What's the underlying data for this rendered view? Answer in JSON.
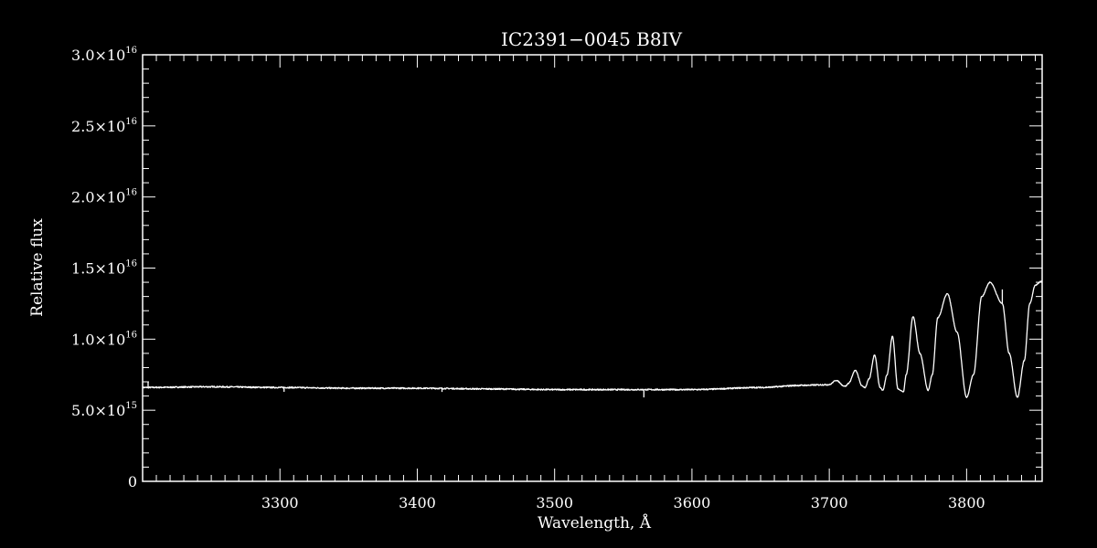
{
  "chart_data": {
    "type": "line",
    "title": "IC2391−0045   B8IV",
    "xlabel": "Wavelength, Å",
    "ylabel": "Relative flux",
    "xlim": [
      3200,
      3855
    ],
    "ylim": [
      0,
      3e+16
    ],
    "x_ticks": [
      3300,
      3400,
      3500,
      3600,
      3700,
      3800
    ],
    "x_tick_labels": [
      "3300",
      "3400",
      "3500",
      "3600",
      "3700",
      "3800"
    ],
    "y_ticks": [
      0,
      5000000000000000.0,
      1e+16,
      1.5e+16,
      2e+16,
      2.5e+16,
      3e+16
    ],
    "y_tick_labels": [
      {
        "mantissa": "0",
        "exp": ""
      },
      {
        "mantissa": "5.0×10",
        "exp": "15"
      },
      {
        "mantissa": "1.0×10",
        "exp": "16"
      },
      {
        "mantissa": "1.5×10",
        "exp": "16"
      },
      {
        "mantissa": "2.0×10",
        "exp": "16"
      },
      {
        "mantissa": "2.5×10",
        "exp": "16"
      },
      {
        "mantissa": "3.0×10",
        "exp": "16"
      }
    ],
    "grid": false,
    "colors": {
      "background": "#000000",
      "foreground": "#ffffff",
      "line": "#ffffff"
    },
    "series": [
      {
        "x": [
          3200,
          3250,
          3300,
          3350,
          3400,
          3450,
          3500,
          3550,
          3600,
          3650,
          3680,
          3700,
          3705,
          3711,
          3712,
          3714,
          3719,
          3724,
          3726,
          3729,
          3733,
          3737,
          3739,
          3742,
          3746,
          3750,
          3754,
          3756,
          3761,
          3766,
          3772,
          3775,
          3779,
          3786,
          3793,
          3800,
          3805,
          3811,
          3817,
          3826,
          3831,
          3837,
          3842,
          3846,
          3850,
          3855
        ],
        "y": [
          6600000000000000.0,
          6650000000000000.0,
          6600000000000000.0,
          6550000000000000.0,
          6550000000000000.0,
          6500000000000000.0,
          6450000000000000.0,
          6450000000000000.0,
          6450000000000000.0,
          6600000000000000.0,
          6750000000000000.0,
          6800000000000000.0,
          7100000000000000.0,
          6700000000000000.0,
          6700000000000000.0,
          6900000000000000.0,
          7800000000000000.0,
          6700000000000000.0,
          6600000000000000.0,
          7200000000000000.0,
          8900000000000000.0,
          6600000000000000.0,
          6400000000000000.0,
          7500000000000000.0,
          1.02e+16,
          6500000000000000.0,
          6300000000000000.0,
          7500000000000000.0,
          1.16e+16,
          9000000000000000.0,
          6400000000000000.0,
          7500000000000000.0,
          1.15e+16,
          1.32e+16,
          1.05e+16,
          5900000000000000.0,
          7500000000000000.0,
          1.3e+16,
          1.4e+16,
          1.25e+16,
          9000000000000000.0,
          5900000000000000.0,
          8500000000000000.0,
          1.25e+16,
          1.38e+16,
          1.41e+16
        ]
      }
    ]
  }
}
